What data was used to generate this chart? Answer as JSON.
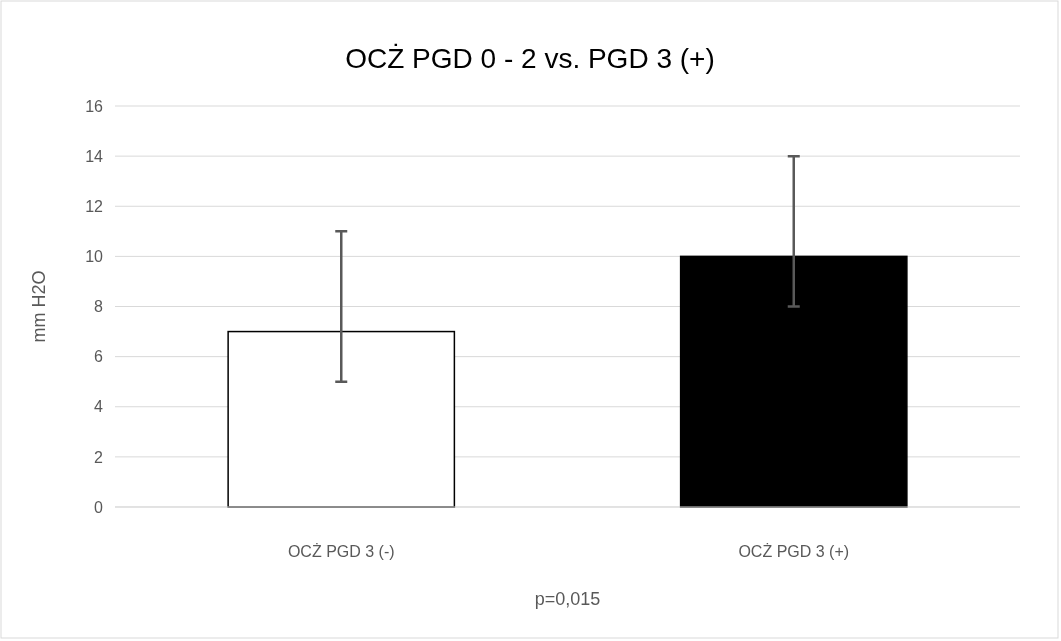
{
  "chart_data": {
    "type": "bar",
    "title": "OCŻ PGD 0 - 2 vs. PGD 3 (+)",
    "ylabel": "mm H2O",
    "categories": [
      "OCŻ PGD 3 (-)",
      "OCŻ PGD 3 (+)"
    ],
    "values": [
      7,
      10
    ],
    "colors": [
      "#ffffff",
      "#000000"
    ],
    "errors": [
      [
        5,
        11
      ],
      [
        8,
        14
      ]
    ],
    "ylim": [
      0,
      16
    ],
    "yticks": [
      0,
      2,
      4,
      6,
      8,
      10,
      12,
      14,
      16
    ],
    "grid": "y",
    "annotations": [
      "p=0,015"
    ]
  }
}
